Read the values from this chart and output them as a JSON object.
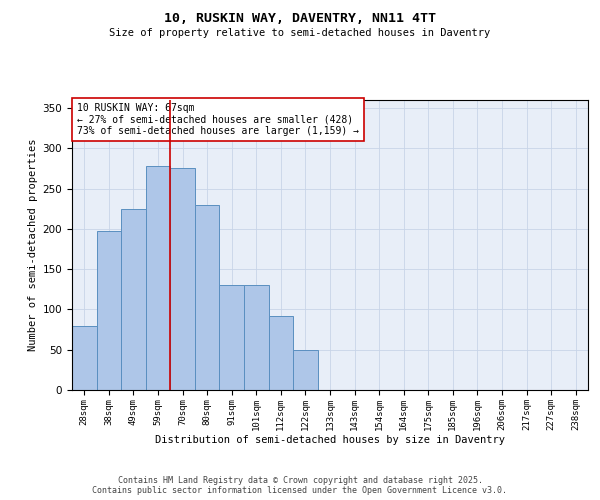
{
  "title": "10, RUSKIN WAY, DAVENTRY, NN11 4TT",
  "subtitle": "Size of property relative to semi-detached houses in Daventry",
  "xlabel": "Distribution of semi-detached houses by size in Daventry",
  "ylabel": "Number of semi-detached properties",
  "categories": [
    "28sqm",
    "38sqm",
    "49sqm",
    "59sqm",
    "70sqm",
    "80sqm",
    "91sqm",
    "101sqm",
    "112sqm",
    "122sqm",
    "133sqm",
    "143sqm",
    "154sqm",
    "164sqm",
    "175sqm",
    "185sqm",
    "196sqm",
    "206sqm",
    "217sqm",
    "227sqm",
    "238sqm"
  ],
  "values": [
    80,
    198,
    225,
    278,
    275,
    230,
    130,
    130,
    92,
    50,
    0,
    0,
    0,
    0,
    0,
    0,
    0,
    0,
    0,
    0,
    0
  ],
  "bar_color": "#aec6e8",
  "bar_edge_color": "#5a8fc0",
  "vline_color": "#cc0000",
  "annotation_box_color": "#cc0000",
  "ylim": [
    0,
    360
  ],
  "yticks": [
    0,
    50,
    100,
    150,
    200,
    250,
    300,
    350
  ],
  "background_color": "#e8eef8",
  "grid_color": "#c8d4e8",
  "footer_line1": "Contains HM Land Registry data © Crown copyright and database right 2025.",
  "footer_line2": "Contains public sector information licensed under the Open Government Licence v3.0."
}
